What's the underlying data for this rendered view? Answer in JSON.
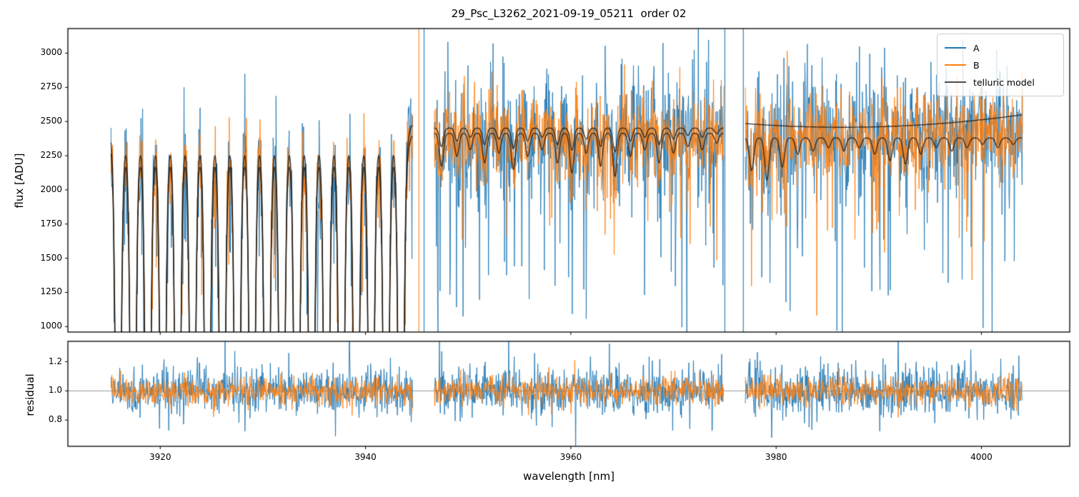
{
  "chart_data": {
    "type": "line",
    "title": "29_Psc_L3262_2021-09-19_05211  order 02",
    "xlabel": "wavelength [nm]",
    "xlim": [
      3911.0,
      4008.6
    ],
    "x_ticks": [
      "3920",
      "3940",
      "3960",
      "3980",
      "4000"
    ],
    "x_tick_values": [
      3920,
      3940,
      3960,
      3980,
      4000
    ],
    "flux_panel": {
      "ylabel": "flux [ADU]",
      "ylim": [
        960,
        3180
      ],
      "yticks": [
        "1000",
        "1250",
        "1500",
        "1750",
        "2000",
        "2250",
        "2500",
        "2750",
        "3000"
      ],
      "ytick_values": [
        1000,
        1250,
        1500,
        1750,
        2000,
        2250,
        2500,
        2750,
        3000
      ]
    },
    "residual_panel": {
      "ylabel": "residual",
      "ylim": [
        0.62,
        1.34
      ],
      "yticks": [
        "0.8",
        "1.0",
        "1.2"
      ],
      "ytick_values": [
        0.8,
        1.0,
        1.2
      ],
      "reference_line": 1.0,
      "reference_line_color": "#808080"
    },
    "legend": {
      "items": [
        {
          "label": "A",
          "color": "#1f77b4"
        },
        {
          "label": "B",
          "color": "#ff7f0e"
        },
        {
          "label": "telluric model",
          "color": "#4d4d4d"
        }
      ]
    },
    "series": {
      "A": {
        "color": "#1f77b4"
      },
      "B": {
        "color": "#ff7f0e"
      }
    },
    "telluric_color": "rgba(25,20,15,0.8)",
    "segments": [
      {
        "x_start": 3915.2,
        "x_end": 3944.6,
        "model": {
          "upper_cont": 2485,
          "lower_cont": 2405,
          "periodic_lines": {
            "first": 3915.9,
            "spacing": 1.45,
            "count": 20,
            "core_depth": 1.8,
            "core_width": 0.3,
            "wing_depth": 0.22,
            "wing_width": 0.58
          }
        }
      },
      {
        "x_start": 3946.7,
        "x_end": 3974.9,
        "model": {
          "upper_cont": 2452,
          "lower_cont": 2414,
          "upper_scale": 0.55,
          "line_width": 0.28,
          "lines": [
            {
              "c": 3947.4,
              "d": 0.1
            },
            {
              "c": 3948.9,
              "d": 0.07
            },
            {
              "c": 3950.2,
              "d": 0.05
            },
            {
              "c": 3951.6,
              "d": 0.09
            },
            {
              "c": 3953.0,
              "d": 0.06
            },
            {
              "c": 3954.4,
              "d": 0.11
            },
            {
              "c": 3955.8,
              "d": 0.07
            },
            {
              "c": 3957.2,
              "d": 0.05
            },
            {
              "c": 3958.7,
              "d": 0.09
            },
            {
              "c": 3960.1,
              "d": 0.12
            },
            {
              "c": 3961.5,
              "d": 0.06
            },
            {
              "c": 3962.9,
              "d": 0.1
            },
            {
              "c": 3964.3,
              "d": 0.13
            },
            {
              "c": 3965.8,
              "d": 0.07
            },
            {
              "c": 3967.2,
              "d": 0.05
            },
            {
              "c": 3968.6,
              "d": 0.09
            },
            {
              "c": 3970.0,
              "d": 0.06
            },
            {
              "c": 3971.4,
              "d": 0.04
            },
            {
              "c": 3972.8,
              "d": 0.05
            },
            {
              "c": 3974.2,
              "d": 0.03
            }
          ]
        }
      },
      {
        "x_start": 3977.0,
        "x_end": 4004.0,
        "model": {
          "upper_smooth": {
            "vertex_x": 3986.5,
            "vertex_y": 2458,
            "coeff": 0.3
          },
          "lower_cont": 2380,
          "line_width": 0.3,
          "lines": [
            {
              "c": 3977.6,
              "d": 0.1
            },
            {
              "c": 3979.1,
              "d": 0.13
            },
            {
              "c": 3980.6,
              "d": 0.09
            },
            {
              "c": 3982.1,
              "d": 0.05
            },
            {
              "c": 3983.6,
              "d": 0.04
            },
            {
              "c": 3985.1,
              "d": 0.03
            },
            {
              "c": 3986.6,
              "d": 0.04
            },
            {
              "c": 3988.1,
              "d": 0.03
            },
            {
              "c": 3989.6,
              "d": 0.05
            },
            {
              "c": 3991.1,
              "d": 0.07
            },
            {
              "c": 3992.6,
              "d": 0.08
            },
            {
              "c": 3994.1,
              "d": 0.05
            },
            {
              "c": 3995.6,
              "d": 0.03
            },
            {
              "c": 3997.1,
              "d": 0.04
            },
            {
              "c": 3998.6,
              "d": 0.03
            },
            {
              "c": 4000.1,
              "d": 0.02
            },
            {
              "c": 4001.6,
              "d": 0.03
            },
            {
              "c": 4003.1,
              "d": 0.02
            }
          ]
        }
      }
    ],
    "noise": {
      "seed": 20210919,
      "flux": {
        "A": {
          "base": 2430,
          "std": 210,
          "neg_p": 0.1,
          "neg_max": 1300,
          "pos_p": 0.05,
          "pos_max": 700
        },
        "B": {
          "base": 2430,
          "std": 150,
          "neg_p": 0.05,
          "neg_max": 900,
          "pos_p": 0.03,
          "pos_max": 420
        }
      },
      "residual": {
        "A": {
          "std": 0.08,
          "tail_p": 0.05,
          "tail_max": 0.3
        },
        "B": {
          "std": 0.048,
          "tail_p": 0.02,
          "tail_max": 0.14
        }
      }
    },
    "stray_lines": [
      {
        "x": 3945.2,
        "series": "B"
      },
      {
        "x": 3945.7,
        "series": "A"
      },
      {
        "x": 3975.0,
        "series": "A"
      },
      {
        "x": 3976.8,
        "series": "A"
      }
    ]
  }
}
